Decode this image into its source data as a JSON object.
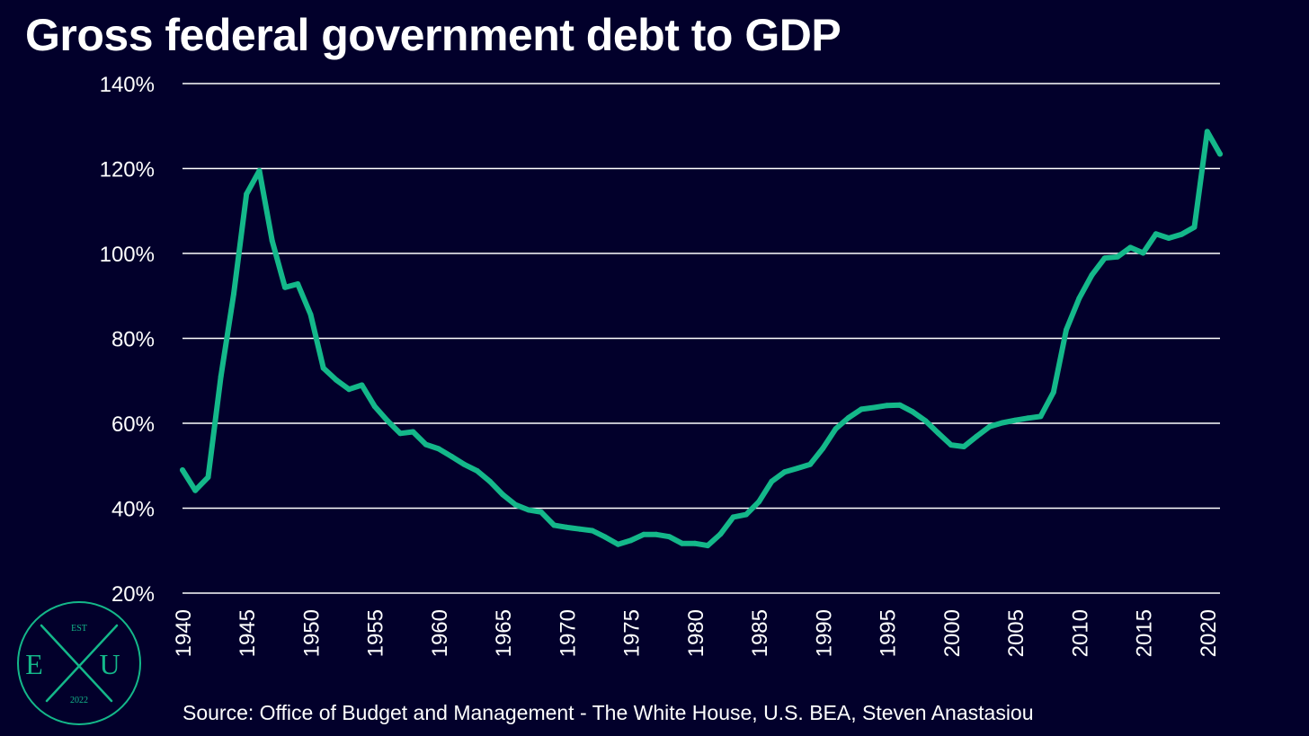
{
  "title": "Gross federal government debt to GDP",
  "source": "Source: Office of Budget and Management - The White House, U.S. BEA, Steven Anastasiou",
  "logo": {
    "top": "EST",
    "left_letter": "E",
    "right_letter": "U",
    "bottom": "2022"
  },
  "colors": {
    "background": "#02002b",
    "line": "#14b88a",
    "grid": "#ffffff",
    "text": "#ffffff",
    "logo": "#14b88a"
  },
  "chart_data": {
    "type": "line",
    "title": "Gross federal government debt to GDP",
    "xlabel": "",
    "ylabel": "",
    "ylim": [
      20,
      140
    ],
    "yticks": [
      20,
      40,
      60,
      80,
      100,
      120,
      140
    ],
    "ytick_labels": [
      "20%",
      "40%",
      "60%",
      "80%",
      "100%",
      "120%",
      "140%"
    ],
    "xlim": [
      1940,
      2021
    ],
    "xticks": [
      1940,
      1945,
      1950,
      1955,
      1960,
      1965,
      1970,
      1975,
      1980,
      1985,
      1990,
      1995,
      2000,
      2005,
      2010,
      2015,
      2020
    ],
    "xtick_labels": [
      "1940",
      "1945",
      "1950",
      "1955",
      "1960",
      "1965",
      "1970",
      "1975",
      "1980",
      "1985",
      "1990",
      "1995",
      "2000",
      "2005",
      "2010",
      "2015",
      "2020"
    ],
    "grid": "horizontal",
    "x": [
      1940,
      1941,
      1942,
      1943,
      1944,
      1945,
      1946,
      1947,
      1948,
      1949,
      1950,
      1951,
      1952,
      1953,
      1954,
      1955,
      1956,
      1957,
      1958,
      1959,
      1960,
      1961,
      1962,
      1963,
      1964,
      1965,
      1966,
      1967,
      1968,
      1969,
      1970,
      1971,
      1972,
      1973,
      1974,
      1975,
      1976,
      1977,
      1978,
      1979,
      1980,
      1981,
      1982,
      1983,
      1984,
      1985,
      1986,
      1987,
      1988,
      1989,
      1990,
      1991,
      1992,
      1993,
      1994,
      1995,
      1996,
      1997,
      1998,
      1999,
      2000,
      2001,
      2002,
      2003,
      2004,
      2005,
      2006,
      2007,
      2008,
      2009,
      2010,
      2011,
      2012,
      2013,
      2014,
      2015,
      2016,
      2017,
      2018,
      2019,
      2020,
      2021
    ],
    "series": [
      {
        "values": [
          49,
          44.2,
          47.3,
          71,
          90.5,
          114,
          119.5,
          103,
          92,
          92.8,
          85.6,
          73,
          70.2,
          68,
          69,
          64,
          60.6,
          57.6,
          58,
          55,
          54,
          52.2,
          50.3,
          48.8,
          46.3,
          43.2,
          40.8,
          39.6,
          39.1,
          36,
          35.5,
          35.1,
          34.7,
          33.2,
          31.5,
          32.4,
          33.8,
          33.8,
          33.3,
          31.7,
          31.7,
          31.2,
          33.9,
          37.9,
          38.5,
          41.5,
          46.3,
          48.5,
          49.4,
          50.3,
          54.1,
          58.7,
          61.3,
          63.3,
          63.7,
          64.2,
          64.3,
          62.7,
          60.6,
          57.7,
          54.9,
          54.5,
          56.9,
          59.2,
          60.1,
          60.7,
          61.2,
          61.6,
          67.3,
          82,
          89.4,
          94.9,
          98.9,
          99.2,
          101.4,
          100.1,
          104.6,
          103.6,
          104.5,
          106.2,
          128.7,
          123.4
        ]
      }
    ]
  }
}
